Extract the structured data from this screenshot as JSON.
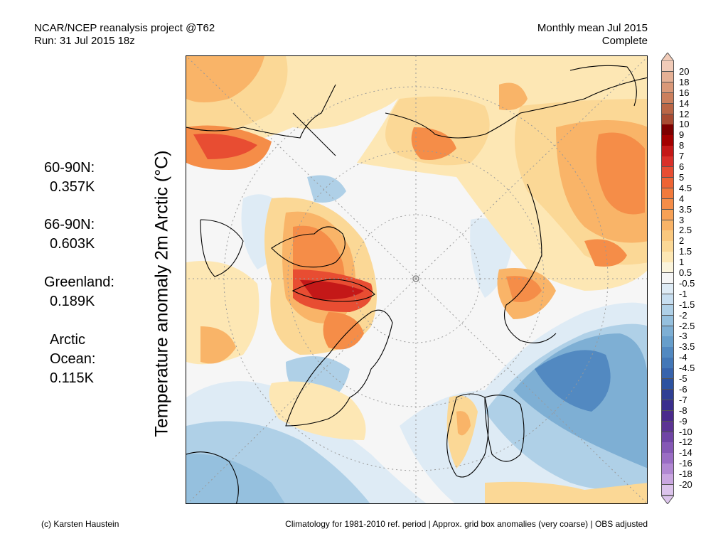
{
  "header": {
    "left_line1": "NCAR/NCEP reanalysis project @T62",
    "left_line2": "Run: 31 Jul 2015 18z",
    "right_line1": "Monthly mean Jul 2015",
    "right_line2": "Complete"
  },
  "ylabel": "Temperature anomaly 2m Arctic (°C)",
  "stats": [
    {
      "line1": "60-90N:",
      "line2": "0.357K"
    },
    {
      "line1": "66-90N:",
      "line2": "0.603K"
    },
    {
      "line1": "Greenland:",
      "line2": "0.189K"
    },
    {
      "line1": "Arctic",
      "line2": "Ocean:",
      "line3": "0.115K"
    }
  ],
  "colorbar": {
    "levels": [
      "20",
      "18",
      "16",
      "14",
      "12",
      "10",
      "9",
      "8",
      "7",
      "6",
      "5",
      "4.5",
      "4",
      "3.5",
      "3",
      "2.5",
      "2",
      "1.5",
      "1",
      "0.5",
      "-0.5",
      "-1",
      "-1.5",
      "-2",
      "-2.5",
      "-3",
      "-3.5",
      "-4",
      "-4.5",
      "-5",
      "-6",
      "-7",
      "-8",
      "-9",
      "-10",
      "-12",
      "-14",
      "-16",
      "-18",
      "-20"
    ],
    "colors": [
      "#f1cbb8",
      "#e5b095",
      "#d99878",
      "#cb7f5d",
      "#ba6646",
      "#a84b32",
      "#7d0000",
      "#a30000",
      "#c41818",
      "#d9302a",
      "#e84d32",
      "#ee6434",
      "#f27a3c",
      "#f58d48",
      "#f7a156",
      "#f9b468",
      "#fac87e",
      "#fbd896",
      "#fde7b4",
      "#fbf4dc",
      "#f5f5f5",
      "#deebf5",
      "#c7def0",
      "#afd0e7",
      "#95c0de",
      "#7eafd4",
      "#679ecb",
      "#5289c1",
      "#4377b7",
      "#3763ac",
      "#2d52a0",
      "#2f3f94",
      "#3a2e8d",
      "#4a2a8c",
      "#5c3494",
      "#7045a5",
      "#8558b5",
      "#9a6dc4",
      "#b188d2",
      "#c9a6e0",
      "#dcc4ec"
    ]
  },
  "map": {
    "colors": {
      "neutral": "#f6f6f6",
      "warm1": "#fde7b4",
      "warm2": "#fbd896",
      "warm3": "#f9b468",
      "warm4": "#f58d48",
      "warm5": "#e84d32",
      "warm6": "#c41818",
      "cool1": "#deebf5",
      "cool2": "#afd0e7",
      "cool3": "#7eafd4",
      "cool4": "#5289c1"
    }
  },
  "footer": {
    "left": "(c) Karsten Haustein",
    "right": "Climatology for 1981-2010 ref. period | Approx. grid box anomalies (very coarse) | OBS adjusted"
  }
}
